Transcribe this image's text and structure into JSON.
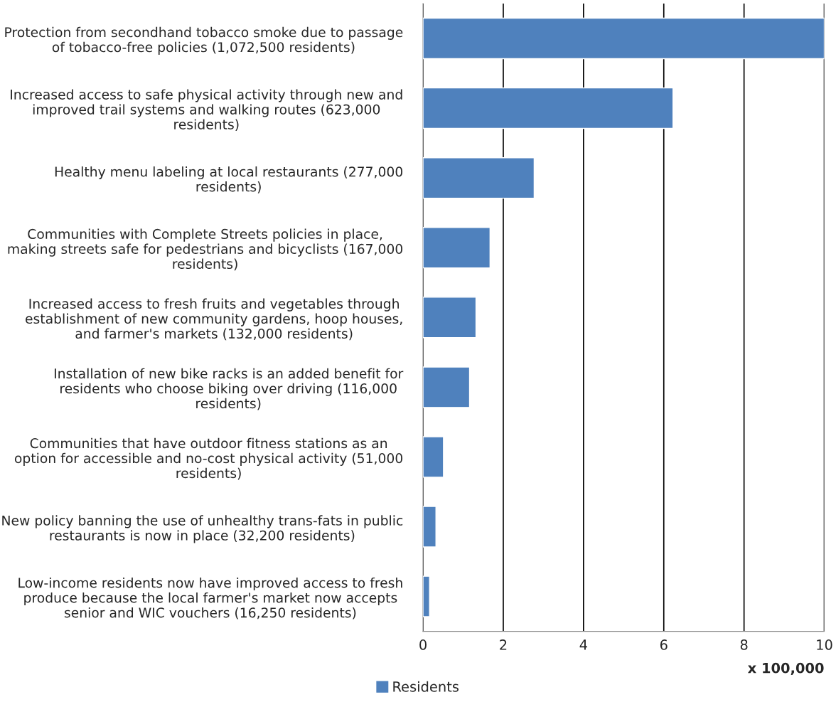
{
  "chart_data": {
    "type": "bar",
    "orientation": "horizontal",
    "categories": [
      "Protection from secondhand tobacco smoke due to passage of tobacco-free policies (1,072,500 residents)",
      "Increased access to safe physical activity through new and improved trail systems and walking routes (623,000 residents)",
      "Healthy menu labeling at local restaurants (277,000 residents)",
      "Communities with Complete Streets policies in place, making streets safe for pedestrians and bicyclists (167,000 residents)",
      "Increased access to fresh fruits and vegetables through establishment of new community gardens, hoop houses, and farmer's markets (132,000 residents)",
      "Installation of new bike racks is an added benefit for residents who choose biking over driving (116,000 residents)",
      "Communities that have outdoor fitness stations as an option for accessible and no-cost physical activity (51,000 residents)",
      "New policy banning the use of unhealthy trans-fats in public restaurants is now in place (32,200 residents)",
      "Low-income residents now have improved access to fresh produce because the local farmer's market now accepts senior and WIC vouchers (16,250 residents)"
    ],
    "series": [
      {
        "name": "Residents",
        "color": "#4f81bd",
        "values": [
          10,
          6.23,
          2.77,
          1.67,
          1.32,
          1.16,
          0.51,
          0.322,
          0.1625
        ]
      }
    ],
    "xlim": [
      0,
      10
    ],
    "xticks": [
      0,
      2,
      4,
      6,
      8,
      10
    ],
    "xlabel": "x 100,000",
    "grid": "x",
    "legend": "bottom"
  }
}
